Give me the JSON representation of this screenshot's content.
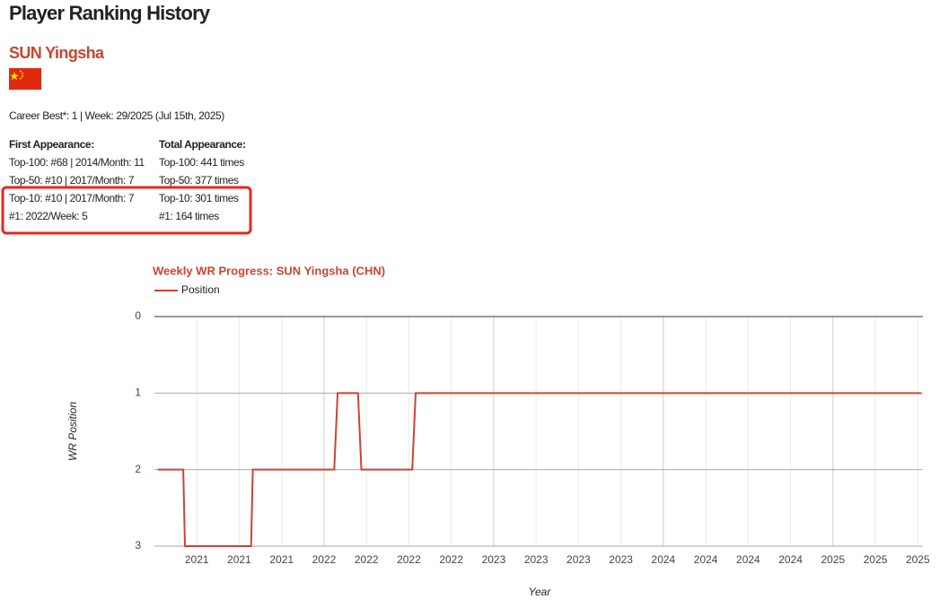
{
  "header": {
    "title": "Player Ranking History"
  },
  "player": {
    "name": "SUN Yingsha",
    "career_best": "Career Best*: 1 | Week: 29/2025 (Jul 15th, 2025)"
  },
  "first_appearance": {
    "heading": "First Appearance:",
    "items": [
      "Top-100: #68 | 2014/Month: 11",
      "Top-50: #10 | 2017/Month: 7",
      "Top-10: #10 | 2017/Month: 7",
      "#1: 2022/Week: 5"
    ]
  },
  "total_appearance": {
    "heading": "Total Appearance:",
    "items": [
      "Top-100: 441 times",
      "Top-50: 377 times",
      "Top-10: 301 times",
      "#1: 164 times"
    ]
  },
  "chart_data": {
    "type": "line",
    "title": "Weekly WR Progress: SUN Yingsha (CHN)",
    "x_label": "Year",
    "y_label": "WR Position",
    "x": [
      2021.02,
      2021.17,
      2021.18,
      2021.57,
      2021.58,
      2022.06,
      2022.08,
      2022.2,
      2022.22,
      2022.52,
      2022.54,
      2025.52
    ],
    "series": [
      {
        "name": "Position",
        "color": "#cc4433",
        "values": [
          2,
          2,
          3,
          3,
          2,
          2,
          1,
          1,
          2,
          2,
          1,
          1
        ]
      }
    ],
    "xlim": [
      2021.0,
      2025.53
    ],
    "xticks": [
      {
        "value": 2021.25,
        "label": "2021"
      },
      {
        "value": 2021.5,
        "label": "2021"
      },
      {
        "value": 2021.75,
        "label": "2021"
      },
      {
        "value": 2022,
        "label": "2022"
      },
      {
        "value": 2022.25,
        "label": "2022"
      },
      {
        "value": 2022.5,
        "label": "2022"
      },
      {
        "value": 2022.75,
        "label": "2022"
      },
      {
        "value": 2023,
        "label": "2023"
      },
      {
        "value": 2023.25,
        "label": "2023"
      },
      {
        "value": 2023.5,
        "label": "2023"
      },
      {
        "value": 2023.75,
        "label": "2023"
      },
      {
        "value": 2024,
        "label": "2024"
      },
      {
        "value": 2024.25,
        "label": "2024"
      },
      {
        "value": 2024.5,
        "label": "2024"
      },
      {
        "value": 2024.75,
        "label": "2024"
      },
      {
        "value": 2025,
        "label": "2025"
      },
      {
        "value": 2025.25,
        "label": "2025"
      },
      {
        "value": 2025.5,
        "label": "2025"
      }
    ],
    "ylim": [
      0,
      3
    ],
    "yticks": [
      0,
      1,
      2,
      3
    ],
    "y_reversed": true,
    "grid": true,
    "legend": "top-left"
  }
}
